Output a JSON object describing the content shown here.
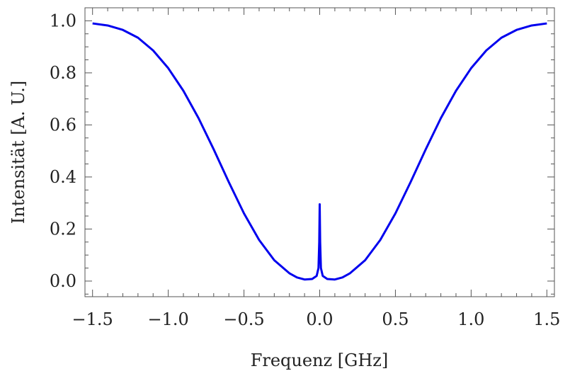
{
  "chart_data": {
    "type": "line",
    "title": "",
    "xlabel": "Frequenz [GHz]",
    "ylabel": "Intensität [A. U.]",
    "xlim": [
      -1.55,
      1.55
    ],
    "ylim": [
      -0.06,
      1.05
    ],
    "grid": false,
    "legend": "none",
    "color": "#0000ee",
    "x_ticks": [
      -1.5,
      -1.0,
      -0.5,
      0.0,
      0.5,
      1.0,
      1.5
    ],
    "x_tick_labels": [
      "−1.5",
      "−1.0",
      "−0.5",
      "0.0",
      "0.5",
      "1.0",
      "1.5"
    ],
    "y_ticks": [
      0.0,
      0.2,
      0.4,
      0.6,
      0.8,
      1.0
    ],
    "y_tick_labels": [
      "0.0",
      "0.2",
      "0.4",
      "0.6",
      "0.8",
      "1.0"
    ],
    "series": [
      {
        "x": [
          -1.5,
          -1.4,
          -1.3,
          -1.2,
          -1.1,
          -1.0,
          -0.9,
          -0.8,
          -0.7,
          -0.6,
          -0.5,
          -0.4,
          -0.3,
          -0.2,
          -0.15,
          -0.1,
          -0.05,
          -0.02,
          -0.008,
          -0.003,
          0.0,
          0.003,
          0.008,
          0.02,
          0.05,
          0.1,
          0.15,
          0.2,
          0.3,
          0.4,
          0.5,
          0.6,
          0.7,
          0.8,
          0.9,
          1.0,
          1.1,
          1.2,
          1.3,
          1.4,
          1.5
        ],
        "y": [
          0.99,
          0.982,
          0.965,
          0.935,
          0.886,
          0.818,
          0.731,
          0.626,
          0.506,
          0.38,
          0.26,
          0.158,
          0.08,
          0.03,
          0.014,
          0.006,
          0.008,
          0.02,
          0.05,
          0.15,
          0.295,
          0.15,
          0.05,
          0.02,
          0.008,
          0.006,
          0.014,
          0.03,
          0.08,
          0.158,
          0.26,
          0.38,
          0.506,
          0.626,
          0.731,
          0.818,
          0.886,
          0.935,
          0.965,
          0.982,
          0.99
        ]
      }
    ]
  }
}
